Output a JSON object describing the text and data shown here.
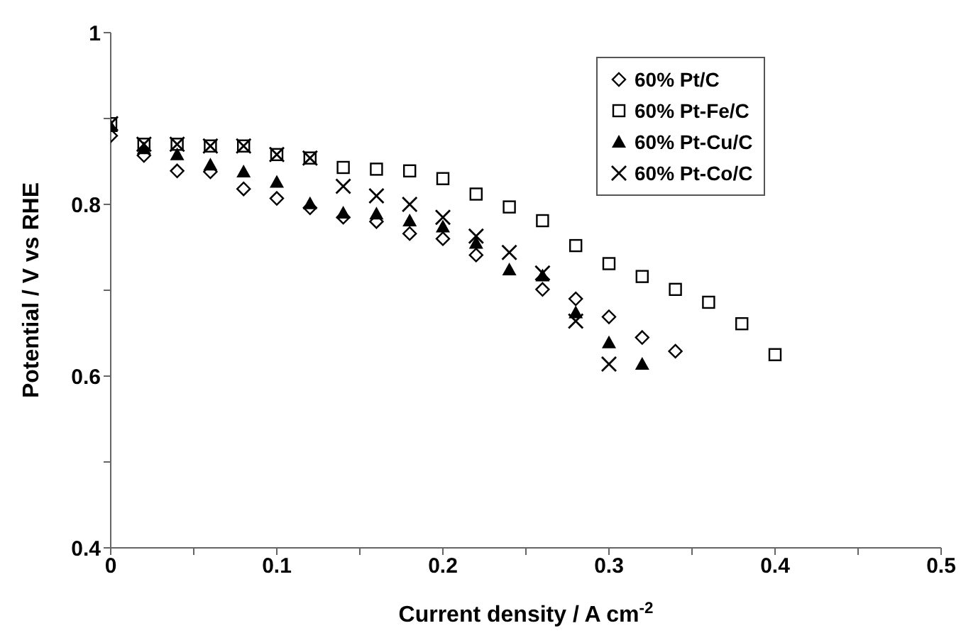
{
  "chart_data": {
    "type": "scatter",
    "xlabel": "Current density / A cm$^{-2}$",
    "ylabel": "Potential / V vs RHE",
    "xlim": [
      0,
      0.5
    ],
    "ylim": [
      0.4,
      1
    ],
    "xticks": [
      0,
      {
        "value": 0.05,
        "label": null
      },
      0.1,
      {
        "value": 0.15,
        "label": null
      },
      0.2,
      {
        "value": 0.25,
        "label": null
      },
      0.3,
      {
        "value": 0.35,
        "label": null
      },
      0.4,
      {
        "value": 0.45,
        "label": null
      },
      0.5
    ],
    "yticks": [
      0.4,
      {
        "value": 0.5,
        "label": null
      },
      0.6,
      {
        "value": 0.7,
        "label": null
      },
      0.8,
      {
        "value": 0.9,
        "label": null
      },
      1
    ],
    "grid": false,
    "legend": "top right",
    "series": [
      {
        "name": "60% Pt/C",
        "color": "#000000",
        "marker": "diamond",
        "x": [
          0,
          0.02,
          0.04,
          0.06,
          0.08,
          0.1,
          0.12,
          0.14,
          0.16,
          0.18,
          0.2,
          0.22,
          0.24,
          0.26,
          0.28,
          0.3,
          0.32,
          0.34
        ],
        "values": [
          0.88,
          0.857,
          0.839,
          0.838,
          0.818,
          0.807,
          0.796,
          0.785,
          0.78,
          0.766,
          0.76,
          0.741,
          null,
          0.701,
          0.69,
          0.669,
          0.645,
          0.629
        ]
      },
      {
        "name": "60% Pt-Fe/C",
        "color": "#000000",
        "marker": "square",
        "x": [
          0,
          0.02,
          0.04,
          0.06,
          0.08,
          0.1,
          0.12,
          0.14,
          0.16,
          0.18,
          0.2,
          0.22,
          0.24,
          0.26,
          0.28,
          0.3,
          0.32,
          0.34,
          0.36,
          0.38,
          0.4
        ],
        "values": [
          0.894,
          0.87,
          0.87,
          0.868,
          0.868,
          0.858,
          0.854,
          0.843,
          0.841,
          0.839,
          0.83,
          0.812,
          0.797,
          0.781,
          0.752,
          0.731,
          0.716,
          0.701,
          0.686,
          0.661,
          0.625
        ]
      },
      {
        "name": "60% Pt-Cu/C",
        "color": "#000000",
        "marker": "triangle",
        "x": [
          0,
          0.02,
          0.04,
          0.06,
          0.08,
          0.1,
          0.12,
          0.14,
          0.16,
          0.18,
          0.2,
          0.22,
          0.24,
          0.26,
          0.28,
          0.3,
          0.32
        ],
        "values": [
          0.891,
          0.865,
          0.858,
          0.846,
          0.838,
          0.826,
          0.801,
          0.79,
          0.789,
          0.781,
          0.774,
          0.755,
          0.724,
          0.717,
          0.674,
          0.639,
          0.614
        ]
      },
      {
        "name": "60% Pt-Co/C",
        "color": "#000000",
        "marker": "cross",
        "x": [
          0,
          0.02,
          0.04,
          0.06,
          0.08,
          0.1,
          0.12,
          0.14,
          0.16,
          0.18,
          0.2,
          0.22,
          0.24,
          0.26,
          0.28,
          0.3
        ],
        "values": [
          0.894,
          0.87,
          0.87,
          0.868,
          0.868,
          0.858,
          0.854,
          0.821,
          0.81,
          0.8,
          0.785,
          0.763,
          0.744,
          0.72,
          0.664,
          0.614
        ]
      }
    ]
  }
}
